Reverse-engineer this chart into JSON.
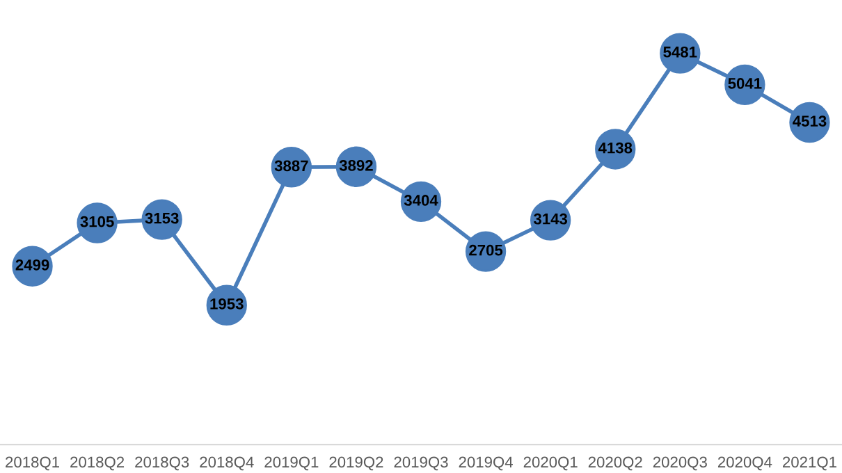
{
  "chart_data": {
    "type": "line",
    "categories": [
      "2018Q1",
      "2018Q2",
      "2018Q3",
      "2018Q4",
      "2019Q1",
      "2019Q2",
      "2019Q3",
      "2019Q4",
      "2020Q1",
      "2020Q2",
      "2020Q3",
      "2020Q4",
      "2021Q1"
    ],
    "series": [
      {
        "color": "#4a7ebb",
        "values": [
          2499,
          3105,
          3153,
          1953,
          3887,
          3892,
          3404,
          2705,
          3143,
          4138,
          5481,
          5041,
          4513
        ]
      }
    ],
    "data_labels": true,
    "marker": "circle",
    "line_style": "solid",
    "grid": false,
    "legend": false
  }
}
